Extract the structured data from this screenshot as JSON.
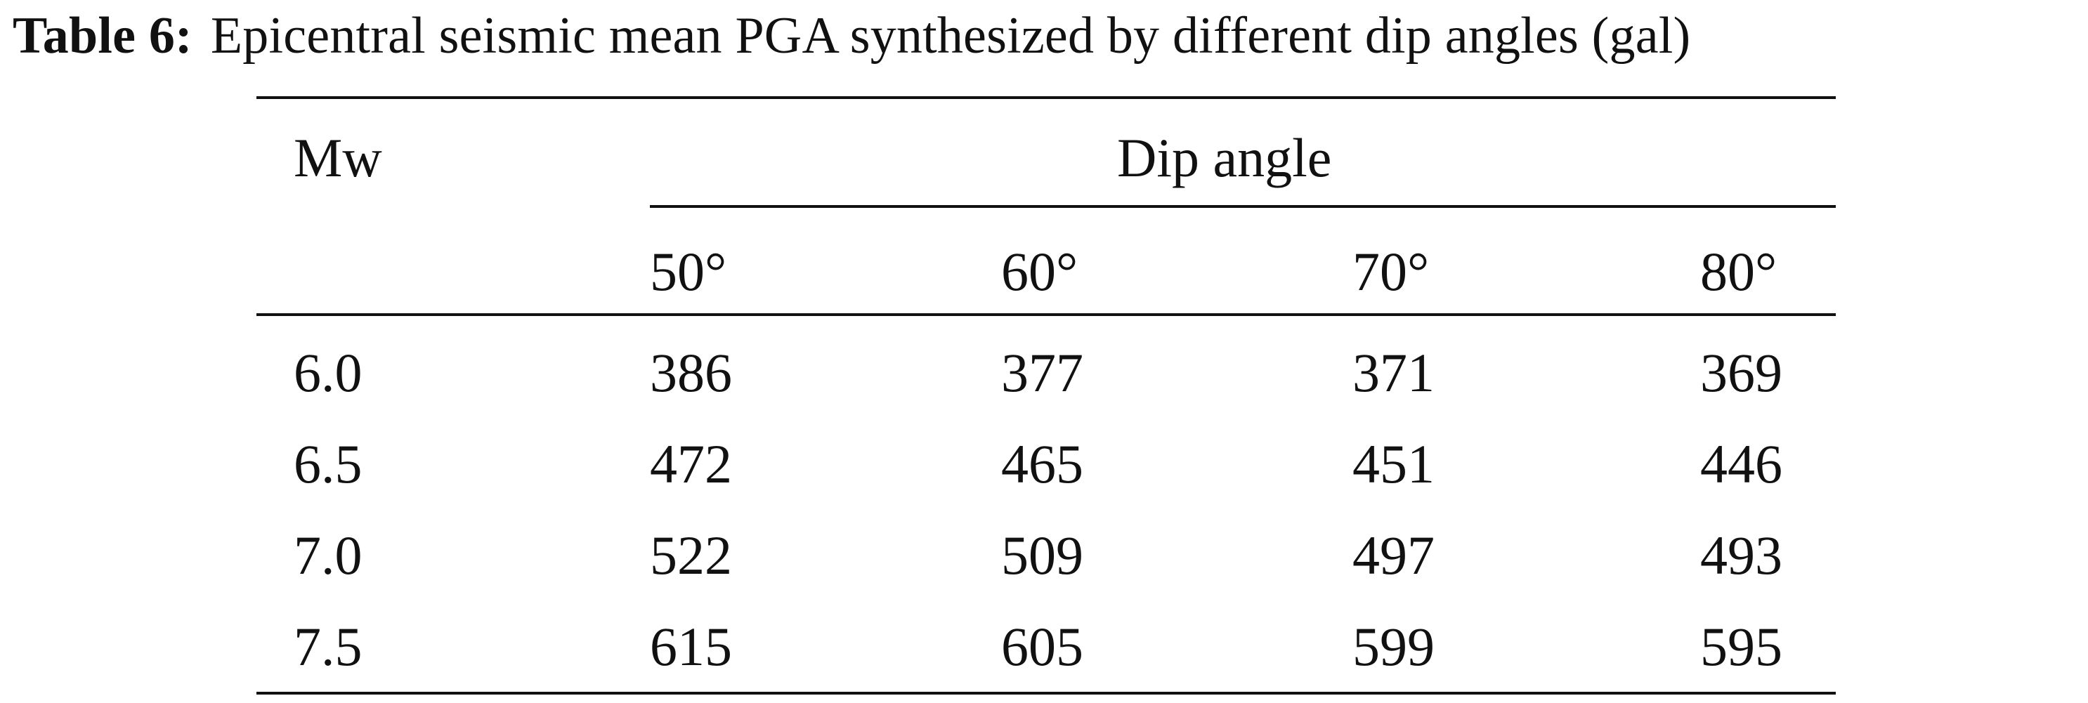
{
  "caption": {
    "label": "Table 6:",
    "text": "Epicentral seismic mean PGA synthesized by different dip angles (gal)"
  },
  "table": {
    "row_header": "Mw",
    "group_header": "Dip angle",
    "columns": [
      "50°",
      "60°",
      "70°",
      "80°"
    ],
    "rows": [
      {
        "mw": "6.0",
        "values": [
          "386",
          "377",
          "371",
          "369"
        ]
      },
      {
        "mw": "6.5",
        "values": [
          "472",
          "465",
          "451",
          "446"
        ]
      },
      {
        "mw": "7.0",
        "values": [
          "522",
          "509",
          "497",
          "493"
        ]
      },
      {
        "mw": "7.5",
        "values": [
          "615",
          "605",
          "599",
          "595"
        ]
      }
    ]
  }
}
